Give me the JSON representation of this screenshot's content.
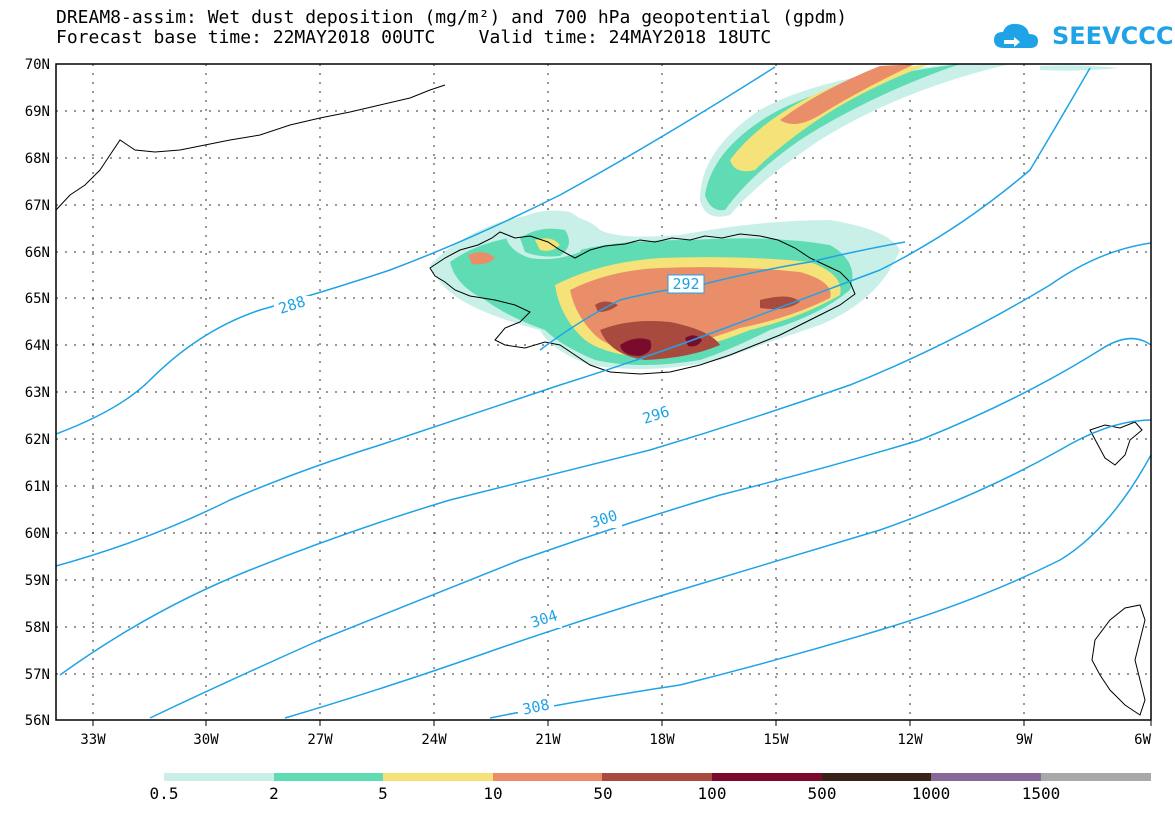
{
  "header": {
    "title_line1": "DREAM8-assim: Wet dust deposition (mg/m²) and 700 hPa geopotential (gpdm)",
    "title_line2": "Forecast base time: 22MAY2018 00UTC    Valid time: 24MAY2018 18UTC",
    "logo_text": "SEEVCCC"
  },
  "map": {
    "lat_labels": [
      "70N",
      "69N",
      "68N",
      "67N",
      "66N",
      "65N",
      "64N",
      "63N",
      "62N",
      "61N",
      "60N",
      "59N",
      "58N",
      "57N",
      "56N"
    ],
    "lon_labels": [
      "33W",
      "30W",
      "27W",
      "24W",
      "21W",
      "18W",
      "15W",
      "12W",
      "9W",
      "6W"
    ],
    "contour_labels": [
      "288",
      "292",
      "296",
      "300",
      "304",
      "308"
    ],
    "contour_color": "#1fa3e6"
  },
  "colorbar": {
    "labels": [
      "0.5",
      "2",
      "5",
      "10",
      "50",
      "100",
      "500",
      "1000",
      "1500"
    ],
    "colors": [
      "#c8f0e8",
      "#5fdcb4",
      "#f5e37a",
      "#e98e68",
      "#a84b3e",
      "#7a0b2d",
      "#3b2218",
      "#8a6698",
      "#a8a8a8"
    ]
  }
}
